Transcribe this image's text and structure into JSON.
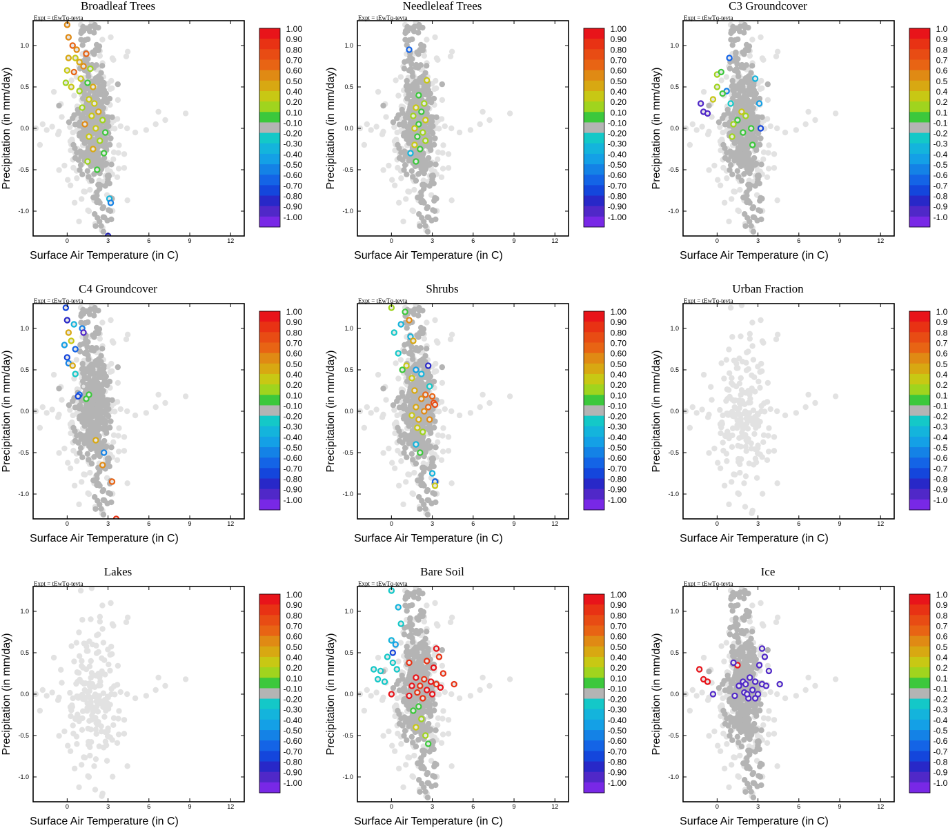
{
  "chart_data": {
    "type": "scatter",
    "expt_label": "Expt = tEwTq-tevta",
    "xlabel": "Surface Air Temperature (in C)",
    "ylabel": "Precipitation (in mm/day)",
    "xlim": [
      -2.5,
      13
    ],
    "ylim": [
      -1.3,
      1.3
    ],
    "xticks": [
      0,
      3,
      6,
      9,
      12
    ],
    "yticks": [
      1.0,
      0.5,
      0.0,
      -0.5,
      -1.0
    ],
    "colorbar": {
      "labels": [
        "1.00",
        "0.90",
        "0.80",
        "0.70",
        "0.60",
        "0.50",
        "0.40",
        "0.20",
        "0.10",
        "-0.10",
        "-0.20",
        "-0.30",
        "-0.40",
        "-0.50",
        "-0.60",
        "-0.70",
        "-0.80",
        "-0.90",
        "-1.00"
      ],
      "colors": [
        "#e8141a",
        "#e83214",
        "#e84c14",
        "#e86414",
        "#e08a14",
        "#d8a812",
        "#c8c814",
        "#a0d41e",
        "#3cc83c",
        "#b4b4b4",
        "#14c8c8",
        "#14b4dc",
        "#14a0e6",
        "#1482e6",
        "#1464e6",
        "#1446dc",
        "#2828c8",
        "#5028c8",
        "#7828e6"
      ]
    },
    "panels": [
      {
        "title": "Broadleaf Trees",
        "points": [
          [
            0.0,
            1.25,
            0.6
          ],
          [
            0.1,
            1.1,
            0.6
          ],
          [
            0.4,
            1.0,
            0.7
          ],
          [
            0.7,
            0.95,
            0.6
          ],
          [
            1.4,
            0.9,
            0.7
          ],
          [
            0.1,
            0.85,
            0.5
          ],
          [
            0.6,
            0.85,
            0.4
          ],
          [
            0.9,
            0.8,
            0.5
          ],
          [
            1.2,
            0.75,
            0.6
          ],
          [
            1.7,
            0.72,
            0.2
          ],
          [
            0.0,
            0.7,
            0.3
          ],
          [
            0.5,
            0.68,
            0.7
          ],
          [
            1.0,
            0.6,
            0.4
          ],
          [
            1.5,
            0.55,
            0.1
          ],
          [
            -0.1,
            0.55,
            0.2
          ],
          [
            0.3,
            0.5,
            0.4
          ],
          [
            1.9,
            0.5,
            0.5
          ],
          [
            0.9,
            0.45,
            0.2
          ],
          [
            1.6,
            0.35,
            0.3
          ],
          [
            2.0,
            0.3,
            0.4
          ],
          [
            1.1,
            0.25,
            0.2
          ],
          [
            2.3,
            0.2,
            0.5
          ],
          [
            1.8,
            0.15,
            0.3
          ],
          [
            2.6,
            0.1,
            0.2
          ],
          [
            1.3,
            0.05,
            0.6
          ],
          [
            2.1,
            0.0,
            0.4
          ],
          [
            2.8,
            -0.05,
            0.1
          ],
          [
            1.6,
            -0.1,
            0.3
          ],
          [
            2.4,
            -0.15,
            0.2
          ],
          [
            1.9,
            -0.25,
            0.5
          ],
          [
            2.7,
            -0.3,
            0.1
          ],
          [
            1.5,
            -0.4,
            0.2
          ],
          [
            2.2,
            -0.5,
            0.1
          ],
          [
            3.1,
            -0.85,
            -0.3
          ],
          [
            3.2,
            -0.9,
            -0.5
          ],
          [
            3.0,
            -1.3,
            -0.8
          ]
        ]
      },
      {
        "title": "Needleleaf Trees",
        "points": [
          [
            1.3,
            0.95,
            -0.6
          ],
          [
            2.6,
            0.58,
            0.4
          ],
          [
            2.0,
            0.4,
            0.1
          ],
          [
            2.4,
            0.3,
            0.2
          ],
          [
            1.8,
            0.25,
            0.3
          ],
          [
            2.2,
            0.2,
            0.1
          ],
          [
            1.6,
            0.15,
            0.2
          ],
          [
            2.5,
            0.1,
            0.4
          ],
          [
            2.0,
            0.05,
            0.1
          ],
          [
            1.7,
            0.0,
            0.3
          ],
          [
            2.3,
            -0.05,
            0.2
          ],
          [
            1.9,
            -0.1,
            0.1
          ],
          [
            2.5,
            -0.15,
            0.2
          ],
          [
            1.7,
            -0.2,
            0.3
          ],
          [
            2.1,
            -0.25,
            0.1
          ],
          [
            1.4,
            -0.3,
            -0.3
          ],
          [
            1.8,
            -0.4,
            0.1
          ]
        ]
      },
      {
        "title": "C3 Groundcover",
        "points": [
          [
            0.9,
            0.85,
            -0.6
          ],
          [
            -1.2,
            0.3,
            -0.9
          ],
          [
            -1.0,
            0.2,
            -0.9
          ],
          [
            -0.7,
            0.18,
            -0.9
          ],
          [
            0.0,
            0.65,
            0.2
          ],
          [
            0.3,
            0.68,
            0.1
          ],
          [
            0.0,
            0.5,
            0.2
          ],
          [
            0.7,
            0.45,
            -0.5
          ],
          [
            0.4,
            0.42,
            0.1
          ],
          [
            -0.3,
            0.35,
            0.4
          ],
          [
            1.0,
            0.3,
            -0.2
          ],
          [
            2.8,
            0.6,
            -0.3
          ],
          [
            3.1,
            0.3,
            -0.4
          ],
          [
            1.8,
            0.2,
            0.3
          ],
          [
            2.1,
            0.15,
            0.2
          ],
          [
            1.5,
            0.1,
            0.1
          ],
          [
            1.2,
            0.05,
            0.2
          ],
          [
            2.5,
            0.0,
            0.1
          ],
          [
            1.9,
            -0.05,
            0.1
          ],
          [
            3.2,
            0.0,
            -0.7
          ],
          [
            1.1,
            -0.1,
            0.2
          ],
          [
            2.6,
            -0.2,
            0.1
          ]
        ]
      },
      {
        "title": "C4 Groundcover",
        "points": [
          [
            -0.1,
            1.25,
            -0.7
          ],
          [
            0.0,
            1.1,
            -0.8
          ],
          [
            0.5,
            1.05,
            -0.3
          ],
          [
            1.1,
            1.0,
            -0.5
          ],
          [
            1.2,
            0.95,
            -0.9
          ],
          [
            0.1,
            0.95,
            0.5
          ],
          [
            0.3,
            0.85,
            0.4
          ],
          [
            -0.2,
            0.8,
            -0.4
          ],
          [
            0.6,
            0.75,
            -0.6
          ],
          [
            0.0,
            0.65,
            -0.7
          ],
          [
            0.1,
            0.58,
            -0.5
          ],
          [
            0.4,
            0.55,
            0.5
          ],
          [
            0.6,
            0.45,
            -0.2
          ],
          [
            1.2,
            0.3,
            -0.1
          ],
          [
            0.9,
            0.2,
            -0.6
          ],
          [
            1.4,
            0.15,
            0.1
          ],
          [
            0.8,
            0.18,
            -0.7
          ],
          [
            1.6,
            0.2,
            0.1
          ],
          [
            2.1,
            -0.35,
            0.5
          ],
          [
            2.7,
            -0.5,
            -0.5
          ],
          [
            2.6,
            -0.65,
            0.6
          ],
          [
            3.3,
            -0.85,
            0.7
          ],
          [
            3.6,
            -1.3,
            0.9
          ]
        ]
      },
      {
        "title": "Shrubs",
        "points": [
          [
            0.0,
            1.25,
            0.2
          ],
          [
            1.0,
            1.2,
            0.1
          ],
          [
            1.3,
            1.1,
            0.6
          ],
          [
            0.7,
            1.05,
            -0.3
          ],
          [
            0.2,
            0.95,
            -0.2
          ],
          [
            1.4,
            0.9,
            -0.3
          ],
          [
            1.6,
            0.85,
            0.5
          ],
          [
            0.5,
            0.7,
            -0.2
          ],
          [
            1.1,
            0.55,
            0.4
          ],
          [
            0.8,
            0.5,
            0.1
          ],
          [
            1.8,
            0.5,
            -0.4
          ],
          [
            2.2,
            0.45,
            -0.3
          ],
          [
            2.7,
            0.55,
            -0.8
          ],
          [
            1.5,
            0.4,
            0.4
          ],
          [
            2.8,
            0.3,
            -0.2
          ],
          [
            1.7,
            0.25,
            0.5
          ],
          [
            2.5,
            0.2,
            0.7
          ],
          [
            3.0,
            0.18,
            0.7
          ],
          [
            2.2,
            0.15,
            0.6
          ],
          [
            3.1,
            0.1,
            0.8
          ],
          [
            2.7,
            0.05,
            0.7
          ],
          [
            1.8,
            0.05,
            0.5
          ],
          [
            2.4,
            0.0,
            0.6
          ],
          [
            3.2,
            0.08,
            0.8
          ],
          [
            1.5,
            -0.05,
            0.4
          ],
          [
            2.0,
            -0.1,
            0.5
          ],
          [
            2.8,
            -0.1,
            0.6
          ],
          [
            1.9,
            -0.2,
            0.4
          ],
          [
            2.3,
            -0.25,
            0.2
          ],
          [
            1.8,
            -0.4,
            -0.3
          ],
          [
            2.1,
            -0.5,
            0.1
          ],
          [
            3.0,
            -0.75,
            -0.3
          ],
          [
            3.2,
            -0.85,
            -0.6
          ],
          [
            3.2,
            -0.9,
            0.3
          ]
        ]
      },
      {
        "title": "Urban Fraction",
        "points": []
      },
      {
        "title": "Lakes",
        "points": []
      },
      {
        "title": "Bare Soil",
        "points": [
          [
            0.0,
            1.25,
            -0.2
          ],
          [
            0.5,
            1.05,
            -0.3
          ],
          [
            0.7,
            0.85,
            -0.2
          ],
          [
            0.0,
            0.65,
            -0.3
          ],
          [
            0.3,
            0.6,
            -0.4
          ],
          [
            0.1,
            0.5,
            -0.7
          ],
          [
            -0.3,
            0.45,
            -0.2
          ],
          [
            0.1,
            0.38,
            -0.2
          ],
          [
            -1.3,
            0.3,
            -0.2
          ],
          [
            -0.8,
            0.28,
            -0.2
          ],
          [
            0.4,
            0.3,
            -0.2
          ],
          [
            -1.0,
            0.18,
            -0.2
          ],
          [
            -0.5,
            0.15,
            -0.2
          ],
          [
            0.0,
            0.0,
            1.0
          ],
          [
            1.3,
            0.38,
            0.9
          ],
          [
            2.6,
            0.4,
            0.9
          ],
          [
            3.3,
            0.55,
            1.0
          ],
          [
            3.5,
            0.45,
            0.9
          ],
          [
            3.1,
            0.32,
            1.0
          ],
          [
            3.8,
            0.25,
            0.9
          ],
          [
            1.8,
            0.2,
            1.0
          ],
          [
            2.4,
            0.18,
            0.9
          ],
          [
            2.9,
            0.15,
            1.0
          ],
          [
            3.3,
            0.12,
            0.9
          ],
          [
            1.5,
            0.1,
            1.0
          ],
          [
            2.1,
            0.1,
            0.9
          ],
          [
            3.6,
            0.08,
            1.0
          ],
          [
            4.6,
            0.12,
            0.9
          ],
          [
            2.6,
            0.05,
            1.0
          ],
          [
            1.9,
            0.02,
            0.9
          ],
          [
            3.0,
            0.0,
            1.0
          ],
          [
            1.3,
            -0.02,
            1.0
          ],
          [
            2.3,
            -0.05,
            0.9
          ],
          [
            2.0,
            -0.15,
            0.1
          ],
          [
            1.6,
            -0.2,
            0.1
          ],
          [
            2.2,
            -0.3,
            0.2
          ],
          [
            1.8,
            -0.4,
            0.3
          ],
          [
            2.5,
            -0.5,
            0.2
          ],
          [
            2.7,
            -0.6,
            0.1
          ]
        ]
      },
      {
        "title": "Ice",
        "points": [
          [
            -1.3,
            0.3,
            1.0
          ],
          [
            -1.0,
            0.18,
            1.0
          ],
          [
            -0.7,
            0.15,
            1.0
          ],
          [
            1.5,
            0.35,
            1.0
          ],
          [
            1.2,
            0.38,
            -0.9
          ],
          [
            -0.3,
            0.0,
            -0.9
          ],
          [
            3.3,
            0.55,
            -0.9
          ],
          [
            3.5,
            0.45,
            -0.9
          ],
          [
            3.1,
            0.35,
            -0.9
          ],
          [
            3.8,
            0.28,
            -0.9
          ],
          [
            1.9,
            0.15,
            -0.9
          ],
          [
            2.4,
            0.2,
            -0.9
          ],
          [
            2.8,
            0.15,
            -0.9
          ],
          [
            3.3,
            0.12,
            -0.9
          ],
          [
            1.6,
            0.1,
            -0.9
          ],
          [
            2.1,
            0.12,
            -0.9
          ],
          [
            3.6,
            0.1,
            -0.9
          ],
          [
            4.6,
            0.12,
            -0.9
          ],
          [
            2.6,
            0.05,
            -0.9
          ],
          [
            2.0,
            0.02,
            -0.9
          ],
          [
            3.0,
            0.0,
            -0.9
          ],
          [
            1.3,
            -0.02,
            -0.9
          ],
          [
            2.3,
            -0.05,
            -0.9
          ],
          [
            2.8,
            -0.05,
            -0.9
          ],
          [
            2.2,
            0.0,
            -0.9
          ]
        ]
      }
    ]
  }
}
